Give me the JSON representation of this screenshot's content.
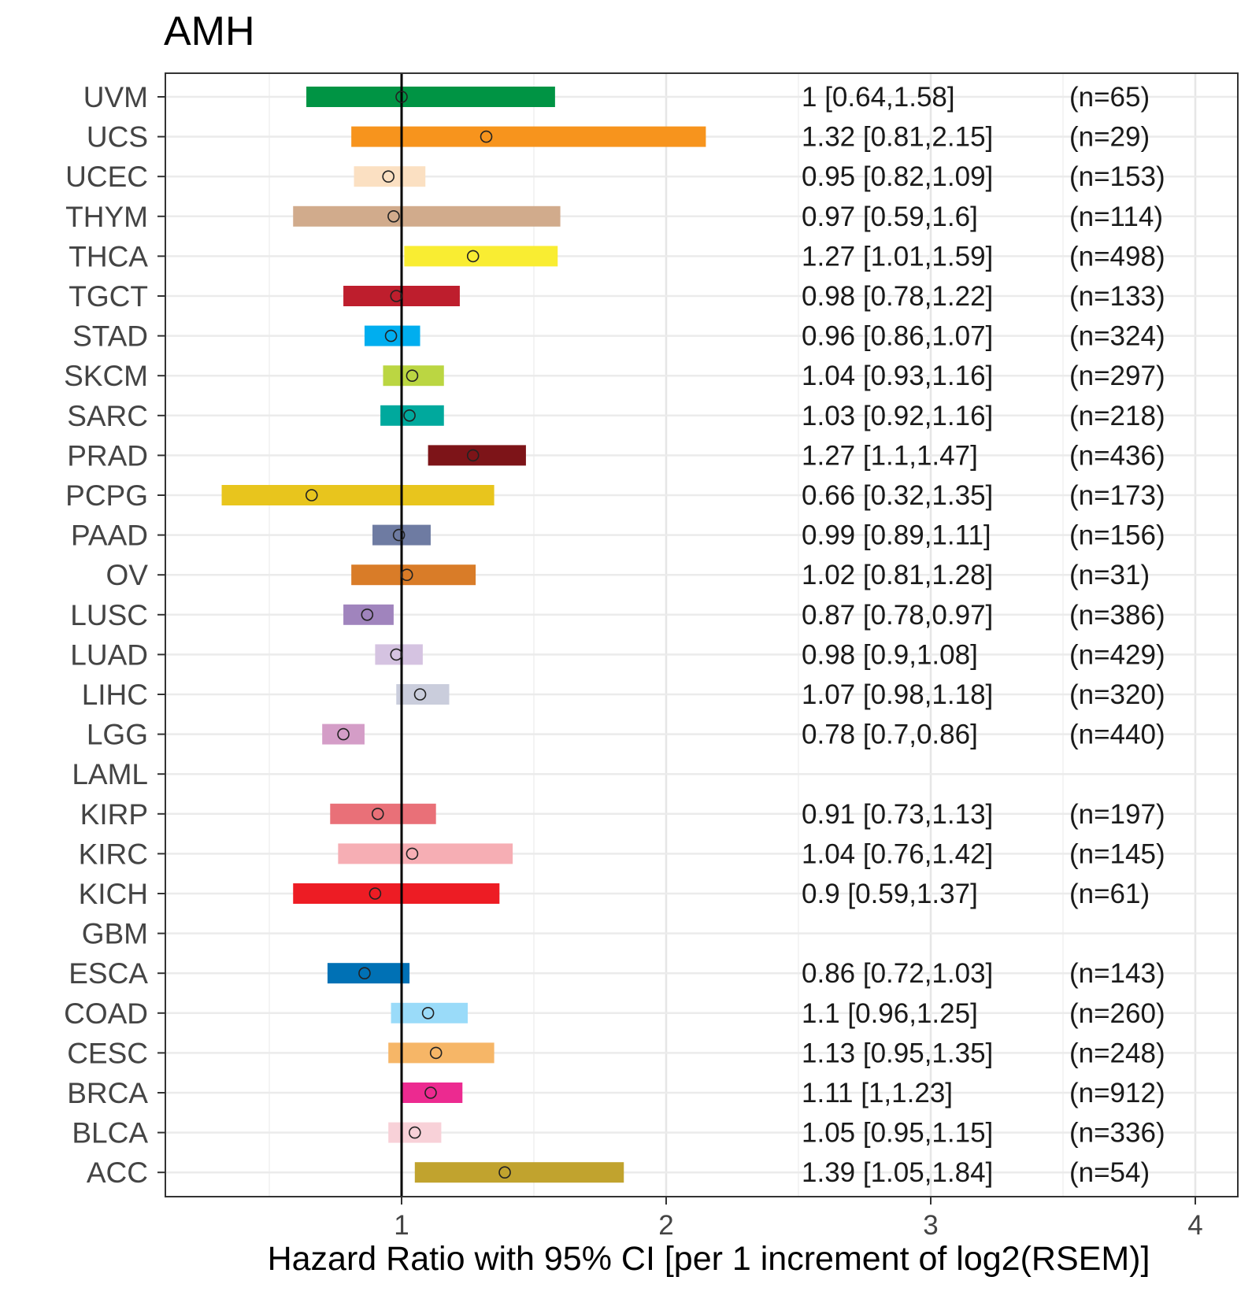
{
  "chart_data": {
    "type": "forest",
    "title": "AMH",
    "xlabel": "Hazard Ratio with 95% CI [per 1 increment of log2(RSEM)]",
    "xlim": [
      0.1,
      4.15
    ],
    "xticks": [
      1,
      2,
      3,
      4
    ],
    "reference_line": 1,
    "rows": [
      {
        "name": "UVM",
        "hr": 1,
        "lo": 0.64,
        "hi": 1.58,
        "label": "1 [0.64,1.58]",
        "n": "(n=65)",
        "color": "#009444"
      },
      {
        "name": "UCS",
        "hr": 1.32,
        "lo": 0.81,
        "hi": 2.15,
        "label": "1.32 [0.81,2.15]",
        "n": "(n=29)",
        "color": "#F7941D"
      },
      {
        "name": "UCEC",
        "hr": 0.95,
        "lo": 0.82,
        "hi": 1.09,
        "label": "0.95 [0.82,1.09]",
        "n": "(n=153)",
        "color": "#FBE0C2"
      },
      {
        "name": "THYM",
        "hr": 0.97,
        "lo": 0.59,
        "hi": 1.6,
        "label": "0.97 [0.59,1.6]",
        "n": "(n=114)",
        "color": "#D1AB8C"
      },
      {
        "name": "THCA",
        "hr": 1.27,
        "lo": 1.01,
        "hi": 1.59,
        "label": "1.27 [1.01,1.59]",
        "n": "(n=498)",
        "color": "#F9ED32"
      },
      {
        "name": "TGCT",
        "hr": 0.98,
        "lo": 0.78,
        "hi": 1.22,
        "label": "0.98 [0.78,1.22]",
        "n": "(n=133)",
        "color": "#BE1E2D"
      },
      {
        "name": "STAD",
        "hr": 0.96,
        "lo": 0.86,
        "hi": 1.07,
        "label": "0.96 [0.86,1.07]",
        "n": "(n=324)",
        "color": "#00AEEF"
      },
      {
        "name": "SKCM",
        "hr": 1.04,
        "lo": 0.93,
        "hi": 1.16,
        "label": "1.04 [0.93,1.16]",
        "n": "(n=297)",
        "color": "#BBD642"
      },
      {
        "name": "SARC",
        "hr": 1.03,
        "lo": 0.92,
        "hi": 1.16,
        "label": "1.03 [0.92,1.16]",
        "n": "(n=218)",
        "color": "#00A99D"
      },
      {
        "name": "PRAD",
        "hr": 1.27,
        "lo": 1.1,
        "hi": 1.47,
        "label": "1.27 [1.1,1.47]",
        "n": "(n=436)",
        "color": "#7D1418"
      },
      {
        "name": "PCPG",
        "hr": 0.66,
        "lo": 0.32,
        "hi": 1.35,
        "label": "0.66 [0.32,1.35]",
        "n": "(n=173)",
        "color": "#E8C51D"
      },
      {
        "name": "PAAD",
        "hr": 0.99,
        "lo": 0.89,
        "hi": 1.11,
        "label": "0.99 [0.89,1.11]",
        "n": "(n=156)",
        "color": "#6E7BA2"
      },
      {
        "name": "OV",
        "hr": 1.02,
        "lo": 0.81,
        "hi": 1.28,
        "label": "1.02 [0.81,1.28]",
        "n": "(n=31)",
        "color": "#D97C28"
      },
      {
        "name": "LUSC",
        "hr": 0.87,
        "lo": 0.78,
        "hi": 0.97,
        "label": "0.87 [0.78,0.97]",
        "n": "(n=386)",
        "color": "#A084BD"
      },
      {
        "name": "LUAD",
        "hr": 0.98,
        "lo": 0.9,
        "hi": 1.08,
        "label": "0.98 [0.9,1.08]",
        "n": "(n=429)",
        "color": "#D5C3E1"
      },
      {
        "name": "LIHC",
        "hr": 1.07,
        "lo": 0.98,
        "hi": 1.18,
        "label": "1.07 [0.98,1.18]",
        "n": "(n=320)",
        "color": "#CACDDC"
      },
      {
        "name": "LGG",
        "hr": 0.78,
        "lo": 0.7,
        "hi": 0.86,
        "label": "0.78 [0.7,0.86]",
        "n": "(n=440)",
        "color": "#D49DC7"
      },
      {
        "name": "LAML",
        "hr": null,
        "lo": null,
        "hi": null,
        "label": "",
        "n": "",
        "color": ""
      },
      {
        "name": "KIRP",
        "hr": 0.91,
        "lo": 0.73,
        "hi": 1.13,
        "label": "0.91 [0.73,1.13]",
        "n": "(n=197)",
        "color": "#E97078"
      },
      {
        "name": "KIRC",
        "hr": 1.04,
        "lo": 0.76,
        "hi": 1.42,
        "label": "1.04 [0.76,1.42]",
        "n": "(n=145)",
        "color": "#F6AEB4"
      },
      {
        "name": "KICH",
        "hr": 0.9,
        "lo": 0.59,
        "hi": 1.37,
        "label": "0.9 [0.59,1.37]",
        "n": "(n=61)",
        "color": "#ED1C24"
      },
      {
        "name": "GBM",
        "hr": null,
        "lo": null,
        "hi": null,
        "label": "",
        "n": "",
        "color": ""
      },
      {
        "name": "ESCA",
        "hr": 0.86,
        "lo": 0.72,
        "hi": 1.03,
        "label": "0.86 [0.72,1.03]",
        "n": "(n=143)",
        "color": "#0071B5"
      },
      {
        "name": "COAD",
        "hr": 1.1,
        "lo": 0.96,
        "hi": 1.25,
        "label": "1.1 [0.96,1.25]",
        "n": "(n=260)",
        "color": "#9ADBF9"
      },
      {
        "name": "CESC",
        "hr": 1.13,
        "lo": 0.95,
        "hi": 1.35,
        "label": "1.13 [0.95,1.35]",
        "n": "(n=248)",
        "color": "#F6B667"
      },
      {
        "name": "BRCA",
        "hr": 1.11,
        "lo": 1,
        "hi": 1.23,
        "label": "1.11 [1,1.23]",
        "n": "(n=912)",
        "color": "#EC2A90"
      },
      {
        "name": "BLCA",
        "hr": 1.05,
        "lo": 0.95,
        "hi": 1.15,
        "label": "1.05 [0.95,1.15]",
        "n": "(n=336)",
        "color": "#F8D1D8"
      },
      {
        "name": "ACC",
        "hr": 1.39,
        "lo": 1.05,
        "hi": 1.84,
        "label": "1.39 [1.05,1.84]",
        "n": "(n=54)",
        "color": "#C1A32E"
      }
    ]
  }
}
